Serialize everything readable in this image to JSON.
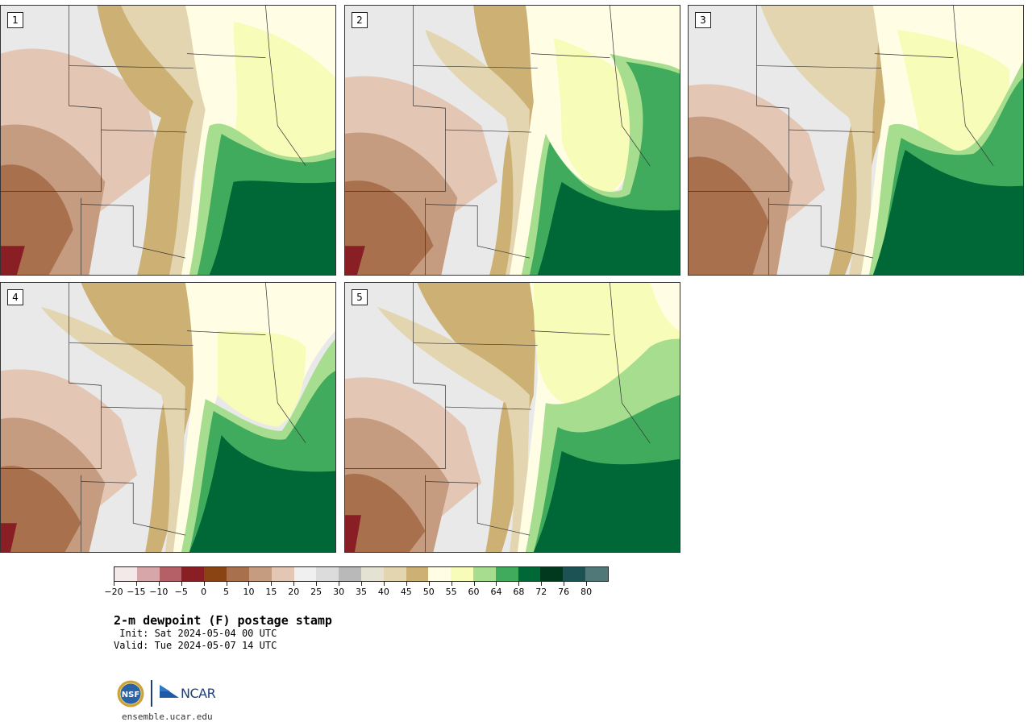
{
  "panels": [
    {
      "id": "p1",
      "label": "1"
    },
    {
      "id": "p2",
      "label": "2"
    },
    {
      "id": "p3",
      "label": "3"
    },
    {
      "id": "p4",
      "label": "4"
    },
    {
      "id": "p5",
      "label": "5"
    }
  ],
  "colorbar": {
    "colors": [
      "#f3e9e9",
      "#d6a6a9",
      "#b46066",
      "#8a1e25",
      "#8a4413",
      "#a8704d",
      "#c59c80",
      "#e3c6b4",
      "#f0f0f0",
      "#dcdcdc",
      "#b9b9b9",
      "#e4e2d3",
      "#e2d5b0",
      "#cdb074",
      "#fffee5",
      "#f7fcb8",
      "#a6dd8e",
      "#41ab5d",
      "#006837",
      "#00391d",
      "#1d5254",
      "#507878"
    ],
    "tick_labels": [
      "−20",
      "−15",
      "−10",
      "−5",
      "0",
      "5",
      "10",
      "15",
      "20",
      "25",
      "30",
      "35",
      "40",
      "45",
      "50",
      "55",
      "60",
      "64",
      "68",
      "72",
      "76",
      "80"
    ]
  },
  "title": "2-m dewpoint (F) postage stamp",
  "init": " Init: Sat 2024-05-04 00 UTC",
  "valid": "Valid: Tue 2024-05-07 14 UTC",
  "logo": {
    "ncar_text": "NCAR",
    "nsf_text": "NSF"
  },
  "site": "ensemble.ucar.edu"
}
